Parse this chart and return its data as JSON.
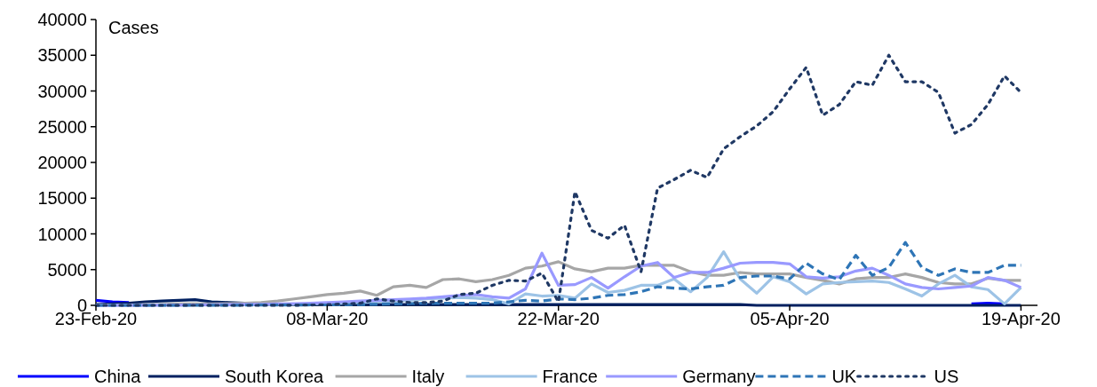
{
  "chart_data": {
    "type": "line",
    "ylabel": "Cases",
    "x": [
      "2020-02-23",
      "2020-02-24",
      "2020-02-25",
      "2020-02-26",
      "2020-02-27",
      "2020-02-28",
      "2020-02-29",
      "2020-03-01",
      "2020-03-02",
      "2020-03-03",
      "2020-03-04",
      "2020-03-05",
      "2020-03-06",
      "2020-03-07",
      "2020-03-08",
      "2020-03-09",
      "2020-03-10",
      "2020-03-11",
      "2020-03-12",
      "2020-03-13",
      "2020-03-14",
      "2020-03-15",
      "2020-03-16",
      "2020-03-17",
      "2020-03-18",
      "2020-03-19",
      "2020-03-20",
      "2020-03-21",
      "2020-03-22",
      "2020-03-23",
      "2020-03-24",
      "2020-03-25",
      "2020-03-26",
      "2020-03-27",
      "2020-03-28",
      "2020-03-29",
      "2020-03-30",
      "2020-03-31",
      "2020-04-01",
      "2020-04-02",
      "2020-04-03",
      "2020-04-04",
      "2020-04-05",
      "2020-04-06",
      "2020-04-07",
      "2020-04-08",
      "2020-04-09",
      "2020-04-10",
      "2020-04-11",
      "2020-04-12",
      "2020-04-13",
      "2020-04-14",
      "2020-04-15",
      "2020-04-16",
      "2020-04-17",
      "2020-04-18",
      "2020-04-19"
    ],
    "series": [
      {
        "name": "China",
        "color": "#0000ff",
        "line_style": "solid",
        "values": [
          700,
          500,
          400,
          null,
          null,
          null,
          null,
          null,
          null,
          null,
          null,
          null,
          null,
          null,
          null,
          null,
          null,
          null,
          null,
          null,
          null,
          null,
          null,
          null,
          null,
          null,
          null,
          null,
          null,
          null,
          null,
          null,
          null,
          null,
          null,
          null,
          null,
          null,
          null,
          null,
          null,
          null,
          null,
          null,
          null,
          null,
          null,
          null,
          null,
          null,
          null,
          null,
          null,
          200,
          300,
          200,
          null
        ]
      },
      {
        "name": "South Korea",
        "color": "#002060",
        "line_style": "solid",
        "values": [
          100,
          200,
          300,
          500,
          600,
          700,
          800,
          500,
          400,
          300,
          200,
          100,
          100,
          100,
          100,
          100,
          100,
          100,
          100,
          100,
          100,
          100,
          100,
          100,
          100,
          100,
          100,
          100,
          100,
          100,
          100,
          100,
          100,
          100,
          100,
          100,
          100,
          100,
          100,
          100,
          0,
          0,
          0,
          0,
          0,
          0,
          0,
          0,
          0,
          0,
          0,
          0,
          0,
          0,
          0,
          0,
          0
        ]
      },
      {
        "name": "Italy",
        "color": "#a6a6a6",
        "line_style": "solid",
        "values": [
          50,
          50,
          50,
          100,
          100,
          200,
          200,
          200,
          250,
          300,
          400,
          600,
          900,
          1200,
          1500,
          1700,
          2000,
          1400,
          2600,
          2800,
          2500,
          3600,
          3700,
          3300,
          3600,
          4200,
          5200,
          5500,
          6100,
          5100,
          4700,
          5200,
          5200,
          5600,
          5600,
          5600,
          4700,
          4200,
          4200,
          4600,
          4400,
          4400,
          4400,
          3900,
          3500,
          3000,
          3700,
          3900,
          3900,
          4400,
          3900,
          3200,
          3000,
          3000,
          3800,
          3500,
          3500
        ]
      },
      {
        "name": "France",
        "color": "#9dc3e6",
        "line_style": "solid",
        "values": [
          0,
          0,
          0,
          0,
          10,
          20,
          30,
          40,
          50,
          60,
          80,
          100,
          150,
          200,
          250,
          300,
          400,
          500,
          600,
          700,
          900,
          1000,
          1100,
          1000,
          800,
          200,
          1600,
          1300,
          1400,
          1000,
          3000,
          1800,
          2100,
          2800,
          2800,
          3700,
          1900,
          3900,
          7500,
          3700,
          1700,
          4000,
          3300,
          1600,
          3000,
          3200,
          3300,
          3400,
          3200,
          2300,
          1300,
          3000,
          4200,
          2600,
          2200,
          200,
          2500
        ]
      },
      {
        "name": "Germany",
        "color": "#9999ff",
        "line_style": "solid",
        "values": [
          0,
          0,
          0,
          20,
          30,
          50,
          60,
          70,
          100,
          150,
          150,
          200,
          250,
          300,
          400,
          500,
          600,
          700,
          800,
          900,
          1000,
          1200,
          1400,
          1500,
          1200,
          1000,
          2300,
          7300,
          2800,
          2900,
          3900,
          2400,
          4000,
          5500,
          6000,
          3900,
          4600,
          4600,
          5200,
          5900,
          6000,
          6000,
          5800,
          4000,
          3800,
          4000,
          4800,
          5200,
          4200,
          3000,
          2500,
          2300,
          2500,
          2700,
          3900,
          3500,
          2500
        ]
      },
      {
        "name": "UK",
        "color": "#2e75b6",
        "line_style": "dashed",
        "values": [
          0,
          0,
          0,
          0,
          0,
          0,
          10,
          10,
          20,
          30,
          40,
          50,
          50,
          60,
          60,
          80,
          100,
          150,
          200,
          250,
          300,
          300,
          300,
          300,
          300,
          500,
          700,
          600,
          900,
          800,
          1000,
          1400,
          1500,
          1900,
          2600,
          2400,
          2300,
          2600,
          2800,
          3900,
          4100,
          4100,
          3700,
          5900,
          4400,
          3600,
          7000,
          4200,
          5300,
          8800,
          5300,
          4200,
          5100,
          4600,
          4600,
          5600,
          5600
        ]
      },
      {
        "name": "US",
        "color": "#1f3864",
        "line_style": "dotted",
        "values": [
          0,
          0,
          0,
          0,
          0,
          0,
          0,
          0,
          0,
          0,
          0,
          10,
          20,
          50,
          100,
          200,
          300,
          900,
          600,
          400,
          400,
          600,
          1500,
          1700,
          2800,
          3500,
          3400,
          4500,
          500,
          15900,
          10500,
          9400,
          11200,
          4700,
          16400,
          17600,
          18900,
          17900,
          21900,
          23600,
          25100,
          27100,
          30300,
          33300,
          26600,
          28100,
          31300,
          30800,
          35000,
          31300,
          31300,
          29800,
          24100,
          25300,
          28100,
          32100,
          29800
        ]
      }
    ],
    "xlim": [
      "2020-02-23",
      "2020-04-20"
    ],
    "xticks": [
      {
        "value": "2020-02-23",
        "label": "23-Feb-20"
      },
      {
        "value": "2020-03-08",
        "label": "08-Mar-20"
      },
      {
        "value": "2020-03-22",
        "label": "22-Mar-20"
      },
      {
        "value": "2020-04-05",
        "label": "05-Apr-20"
      },
      {
        "value": "2020-04-19",
        "label": "19-Apr-20"
      }
    ],
    "ylim": [
      0,
      40000
    ],
    "yticks": [
      0,
      5000,
      10000,
      15000,
      20000,
      25000,
      30000,
      35000,
      40000
    ],
    "grid": false,
    "legend": "bottom"
  }
}
